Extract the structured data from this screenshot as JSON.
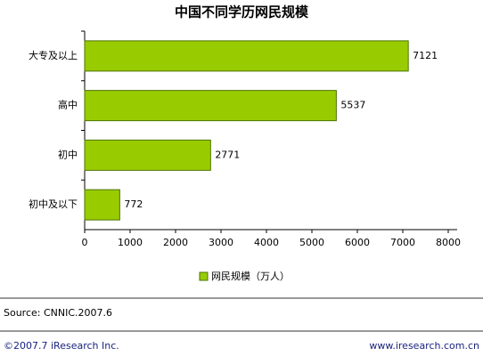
{
  "chart_data": {
    "type": "hbar",
    "title": "中国不同学历网民规模",
    "categories": [
      "大专及以上",
      "高中",
      "初中",
      "初中及以下"
    ],
    "series": [
      {
        "name": "网民规模（万人）",
        "color": "#99cc00",
        "values": [
          7121,
          5537,
          2771,
          772
        ]
      }
    ],
    "xlim": [
      0,
      8000
    ],
    "xticks": [
      0,
      1000,
      2000,
      3000,
      4000,
      5000,
      6000,
      7000,
      8000
    ]
  },
  "source": "Source:  CNNIC.2007.6",
  "footer": {
    "left": "©2007.7 iResearch Inc.",
    "right": "www.iresearch.com.cn"
  }
}
